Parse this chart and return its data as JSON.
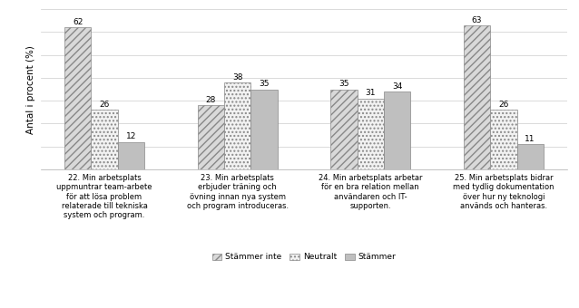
{
  "categories": [
    "22. Min arbetsplats\nuppmuntrar team-arbete\nför att lösa problem\nrelaterade till tekniska\nsystem och program.",
    "23. Min arbetsplats\nerbjuder träning och\növning innan nya system\noch program introduceras.",
    "24. Min arbetsplats arbetar\nför en bra relation mellan\nanvändaren och IT-\nsupporten.",
    "25. Min arbetsplats bidrar\nmed tydlig dokumentation\növer hur ny teknologi\nanvänds och hanteras."
  ],
  "series": {
    "Stämmer inte": [
      62,
      28,
      35,
      63
    ],
    "Neutralt": [
      26,
      38,
      31,
      26
    ],
    "Stämmer": [
      12,
      35,
      34,
      11
    ]
  },
  "ylabel": "Antal i procent (%)",
  "ylim": [
    0,
    70
  ],
  "bar_width": 0.2,
  "colors": {
    "Stämmer inte": "#d9d9d9",
    "Neutralt": "#f2f2f2",
    "Stämmer": "#bfbfbf"
  },
  "hatches": {
    "Stämmer inte": "////",
    "Neutralt": "....",
    "Stämmer": ""
  },
  "label_fontsize": 6.5,
  "tick_fontsize": 6,
  "legend_fontsize": 6.5,
  "ylabel_fontsize": 7.5
}
